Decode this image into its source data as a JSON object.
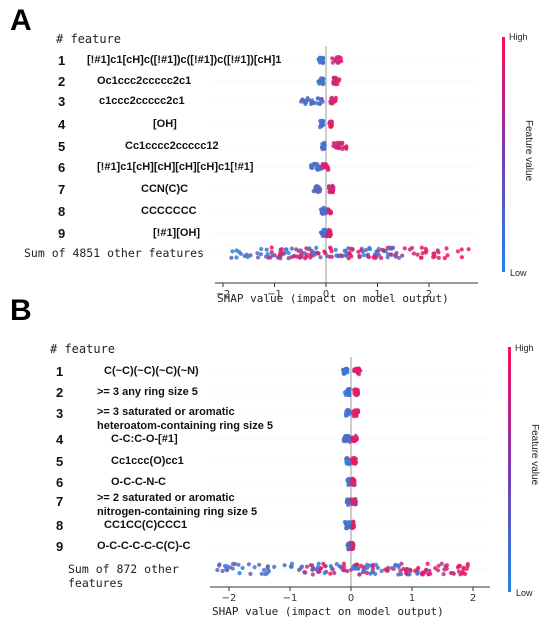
{
  "panels": [
    {
      "letter": "A",
      "header": "# feature",
      "other_label": "Sum of 4851 other features",
      "xlabel": "SHAP value (impact on model output)",
      "colorbar": {
        "title": "Feature value",
        "high": "High",
        "low": "Low"
      }
    },
    {
      "letter": "B",
      "header": "# feature",
      "other_label_1": "Sum of 872 other",
      "other_label_2": "features",
      "xlabel": "SHAP value (impact on model output)",
      "colorbar": {
        "title": "Feature value",
        "high": "High",
        "low": "Low"
      }
    }
  ],
  "chart_data": [
    {
      "type": "scatter",
      "subtype": "shap-beeswarm",
      "xlabel": "SHAP value (impact on model output)",
      "xticks": [
        -2,
        -1,
        0,
        1,
        2
      ],
      "xlim": [
        -2.3,
        3.1
      ],
      "color_scale": {
        "low": "#1e88e5",
        "high": "#ff0d57"
      },
      "features": [
        {
          "rank": 1,
          "name": "[!#1]c1[cH]c([!#1])c([!#1])c([!#1])[cH]1",
          "low_range": [
            -0.15,
            -0.05
          ],
          "high_range": [
            0.12,
            0.3
          ]
        },
        {
          "rank": 2,
          "name": "Oc1ccc2ccccc2c1",
          "low_range": [
            -0.15,
            -0.05
          ],
          "high_range": [
            0.12,
            0.3
          ]
        },
        {
          "rank": 3,
          "name": "c1ccc2ccccc2c1",
          "low_range": [
            -0.5,
            -0.05
          ],
          "high_range": [
            0.08,
            0.2
          ]
        },
        {
          "rank": 4,
          "name": "[OH]",
          "low_range": [
            -0.12,
            -0.05
          ],
          "high_range": [
            0.06,
            0.12
          ]
        },
        {
          "rank": 5,
          "name": "Cc1cccc2ccccc12",
          "low_range": [
            -0.08,
            -0.02
          ],
          "high_range": [
            0.1,
            0.4
          ]
        },
        {
          "rank": 6,
          "name": "[!#1]c1[cH][cH][cH][cH]c1[!#1]",
          "low_range": [
            -0.3,
            -0.1
          ],
          "high_range": [
            -0.1,
            0.05
          ]
        },
        {
          "rank": 7,
          "name": "CCN(C)C",
          "low_range": [
            -0.25,
            -0.1
          ],
          "high_range": [
            0.05,
            0.15
          ]
        },
        {
          "rank": 8,
          "name": "CCCCCCC",
          "low_range": [
            -0.1,
            0.0
          ],
          "high_range": [
            0.0,
            0.1
          ]
        },
        {
          "rank": 9,
          "name": "[!#1][OH]",
          "low_range": [
            -0.1,
            0.0
          ],
          "high_range": [
            0.0,
            0.1
          ]
        },
        {
          "rank": 10,
          "name": "Sum of 4851 other features",
          "low_range": [
            -2.0,
            1.5
          ],
          "high_range": [
            -1.2,
            2.8
          ]
        }
      ]
    },
    {
      "type": "scatter",
      "subtype": "shap-beeswarm",
      "xlabel": "SHAP value (impact on model output)",
      "xticks": [
        -2,
        -1,
        0,
        1,
        2
      ],
      "xlim": [
        -2.4,
        2.3
      ],
      "color_scale": {
        "low": "#1e88e5",
        "high": "#ff0d57"
      },
      "features": [
        {
          "rank": 1,
          "name": "C(~C)(~C)(~C)(~N)",
          "low_range": [
            -0.15,
            -0.05
          ],
          "high_range": [
            0.05,
            0.15
          ]
        },
        {
          "rank": 2,
          "name": ">= 3 any ring size 5",
          "low_range": [
            -0.1,
            -0.02
          ],
          "high_range": [
            0.03,
            0.12
          ]
        },
        {
          "rank": 3,
          "name": ">= 3 saturated or aromatic heteroatom-containing ring size 5",
          "low_range": [
            -0.1,
            -0.02
          ],
          "high_range": [
            0.03,
            0.12
          ]
        },
        {
          "rank": 4,
          "name": "C-C:C-O-[#1]",
          "low_range": [
            -0.12,
            -0.02
          ],
          "high_range": [
            0.02,
            0.1
          ]
        },
        {
          "rank": 5,
          "name": "Cc1ccc(O)cc1",
          "low_range": [
            -0.08,
            -0.02
          ],
          "high_range": [
            0.01,
            0.08
          ]
        },
        {
          "rank": 6,
          "name": "O-C-C-N-C",
          "low_range": [
            -0.06,
            -0.01
          ],
          "high_range": [
            0.01,
            0.06
          ]
        },
        {
          "rank": 7,
          "name": ">= 2 saturated or aromatic nitrogen-containing ring size 5",
          "low_range": [
            -0.07,
            -0.01
          ],
          "high_range": [
            0.01,
            0.08
          ]
        },
        {
          "rank": 8,
          "name": "CC1CC(C)CCC1",
          "low_range": [
            -0.1,
            -0.02
          ],
          "high_range": [
            0.0,
            0.05
          ]
        },
        {
          "rank": 9,
          "name": "O-C-C-C-C-C(C)-C",
          "low_range": [
            -0.06,
            -0.01
          ],
          "high_range": [
            0.0,
            0.04
          ]
        },
        {
          "rank": 10,
          "name": "Sum of 872 other features",
          "low_range": [
            -2.2,
            1.2
          ],
          "high_range": [
            -0.8,
            2.0
          ]
        }
      ]
    }
  ]
}
